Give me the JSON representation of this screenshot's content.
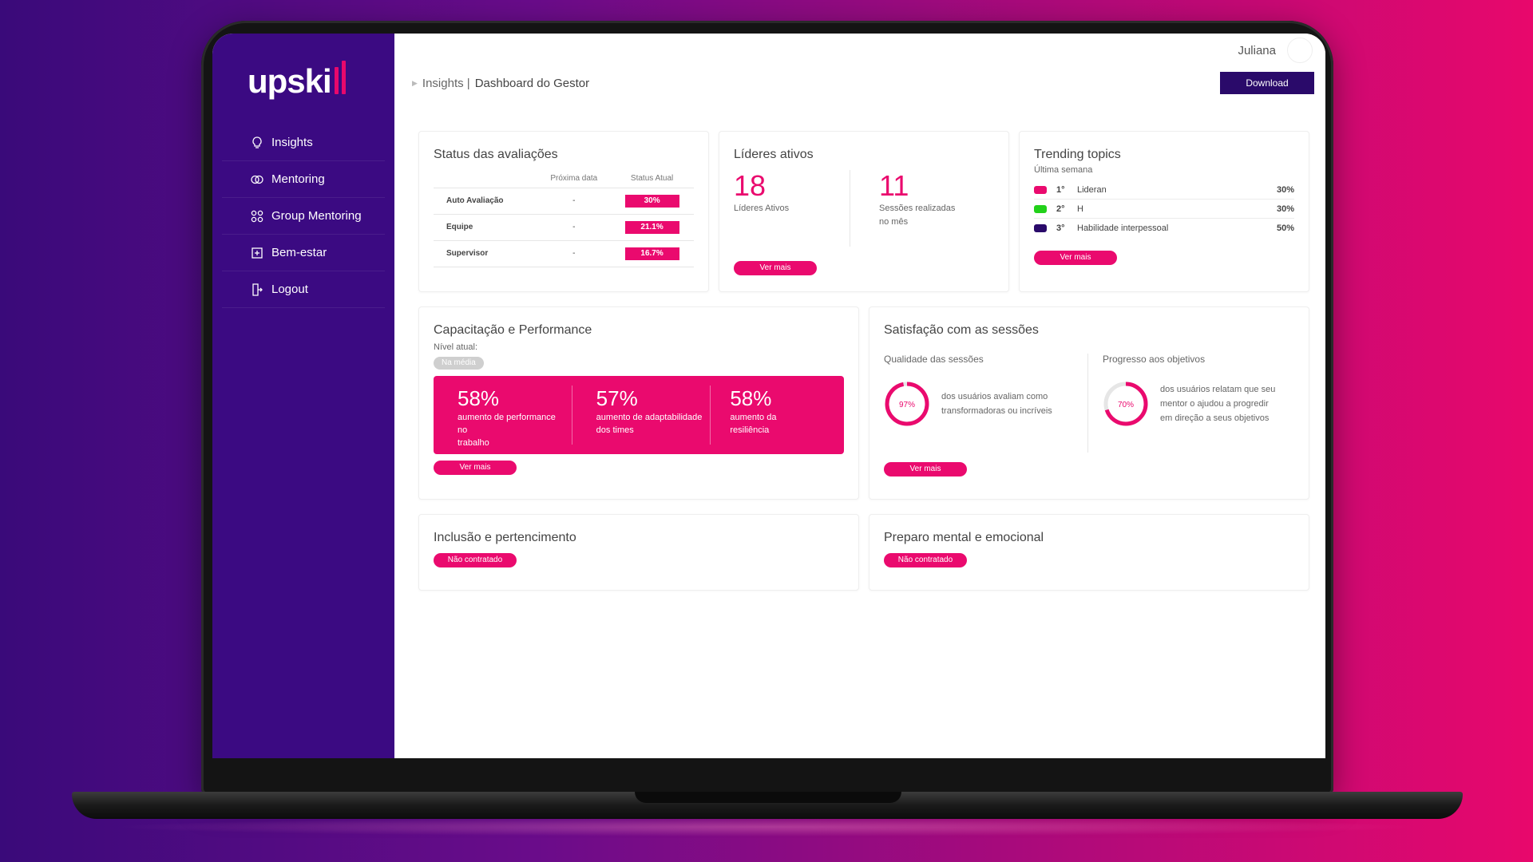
{
  "app": {
    "brand": "upskill"
  },
  "colors": {
    "sidebar": "#3b0a82",
    "accent": "#ea0a6e",
    "download": "#2a0a6a"
  },
  "sidebar": {
    "items": [
      {
        "label": "Insights",
        "icon": "lightbulb-icon"
      },
      {
        "label": "Mentoring",
        "icon": "mentoring-icon"
      },
      {
        "label": "Group Mentoring",
        "icon": "group-mentoring-icon"
      },
      {
        "label": "Bem-estar",
        "icon": "wellbeing-icon"
      },
      {
        "label": "Logout",
        "icon": "logout-icon"
      }
    ]
  },
  "header": {
    "username": "Juliana",
    "breadcrumb_root": "Insights |",
    "breadcrumb_page": "Dashboard do Gestor",
    "download_label": "Download"
  },
  "status_card": {
    "title": "Status das avaliações",
    "col_next_date": "Próxima data",
    "col_status": "Status Atual",
    "rows": [
      {
        "name": "Auto Avaliação",
        "date": "-",
        "status": "30%"
      },
      {
        "name": "Equipe",
        "date": "-",
        "status": "21.1%"
      },
      {
        "name": "Supervisor",
        "date": "-",
        "status": "16.7%"
      }
    ]
  },
  "leaders_card": {
    "title": "Líderes ativos",
    "leaders_count": "18",
    "leaders_label": "Líderes Ativos",
    "sessions_count": "11",
    "sessions_label_1": "Sessões realizadas",
    "sessions_label_2": "no mês",
    "more_label": "Ver mais"
  },
  "trending_card": {
    "title": "Trending topics",
    "subtitle": "Última semana",
    "topics": [
      {
        "rank": "1°",
        "label": "Lideran",
        "pct": "30%",
        "color": "#ea0a6e"
      },
      {
        "rank": "2°",
        "label": "H",
        "pct": "30%",
        "color": "#22d11a"
      },
      {
        "rank": "3°",
        "label": "Habilidade interpessoal",
        "pct": "50%",
        "color": "#2a0a6a"
      }
    ],
    "more_label": "Ver mais"
  },
  "performance_card": {
    "title": "Capacitação e Performance",
    "level_label": "Nível atual:",
    "level_value": "Na média",
    "items": [
      {
        "value": "58%",
        "label_1": "aumento de performance no",
        "label_2": "trabalho"
      },
      {
        "value": "57%",
        "label_1": "aumento de adaptabilidade",
        "label_2": "dos times"
      },
      {
        "value": "58%",
        "label_1": "aumento da",
        "label_2": "resiliência"
      }
    ],
    "more_label": "Ver mais"
  },
  "satisfaction_card": {
    "title": "Satisfação com as sessões",
    "quality_title": "Qualidade das sessões",
    "quality_value": 97,
    "quality_text": "97%",
    "quality_desc_1": "dos usuários avaliam como",
    "quality_desc_2": "transformadoras ou incríveis",
    "progress_title": "Progresso aos objetivos",
    "progress_value": 70,
    "progress_text": "70%",
    "progress_desc_1": "dos usuários relatam que seu",
    "progress_desc_2": "mentor o ajudou a progredir",
    "progress_desc_3": "em direção a seus objetivos",
    "more_label": "Ver mais"
  },
  "inclusion_card": {
    "title": "Inclusão e pertencimento",
    "badge": "Não contratado"
  },
  "mental_card": {
    "title": "Preparo mental e emocional",
    "badge": "Não contratado"
  }
}
